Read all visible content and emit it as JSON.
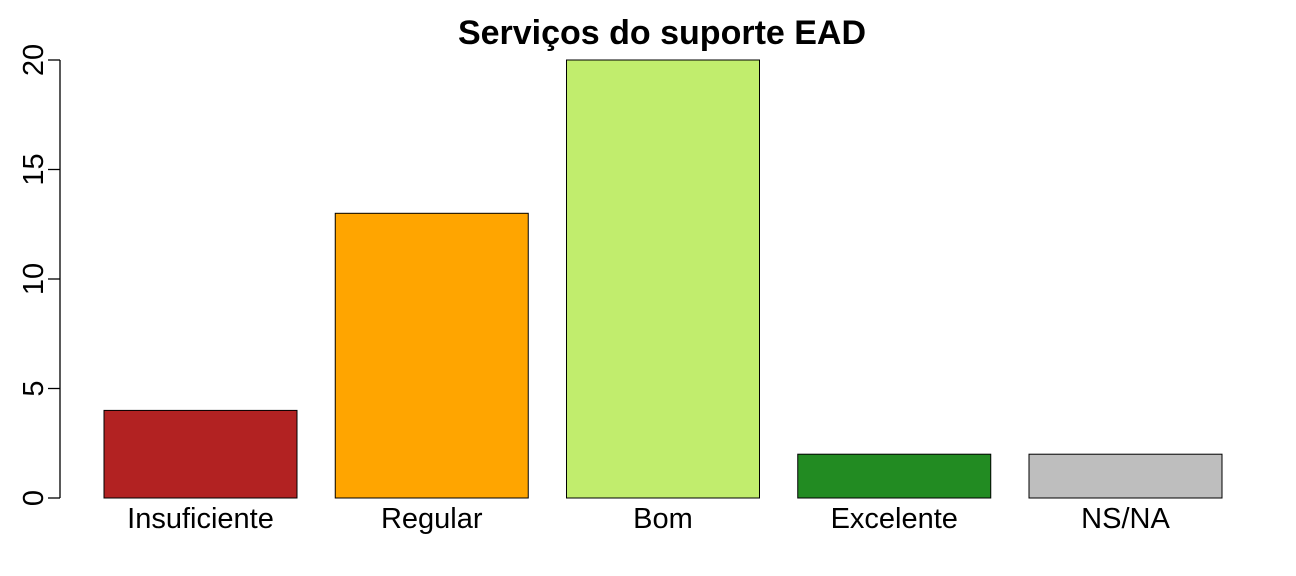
{
  "chart_data": {
    "type": "bar",
    "title": "Serviços do suporte EAD",
    "xlabel": "",
    "ylabel": "",
    "categories": [
      "Insuficiente",
      "Regular",
      "Bom",
      "Excelente",
      "NS/NA"
    ],
    "values": [
      4,
      13,
      20,
      2,
      2
    ],
    "colors": [
      "#b22222",
      "#ffa500",
      "#c1ed6d",
      "#228b22",
      "#bebebe"
    ],
    "ylim": [
      0,
      20
    ],
    "yticks": [
      0,
      5,
      10,
      15,
      20
    ],
    "ytick_labels": [
      "0",
      "5",
      "10",
      "15",
      "20"
    ],
    "grid": false,
    "legend": "none"
  }
}
